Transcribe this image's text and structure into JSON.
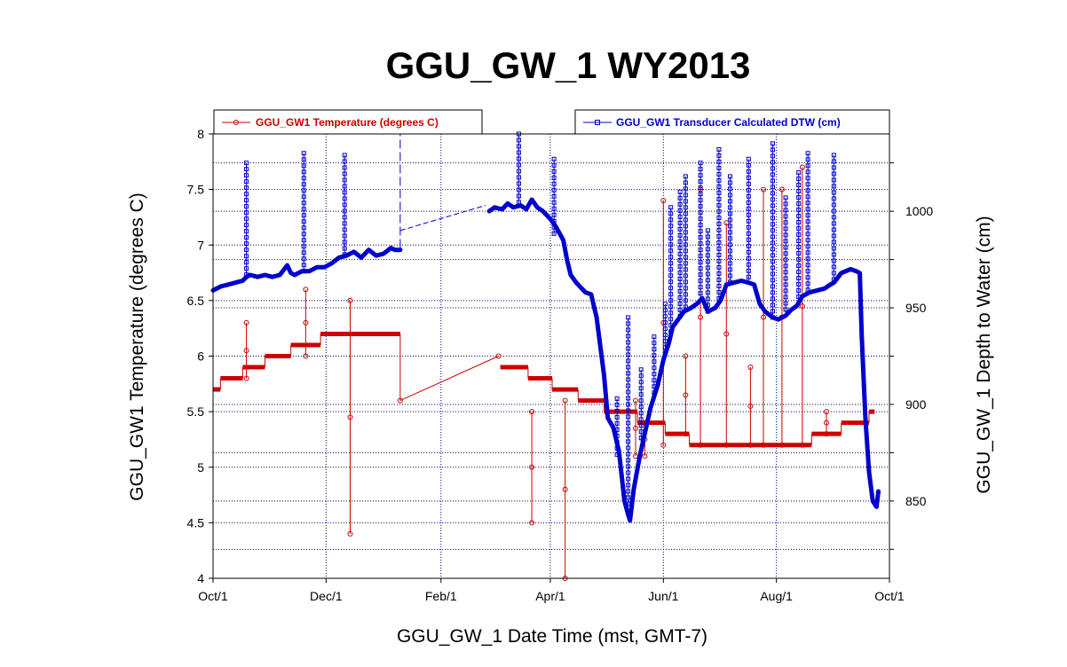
{
  "chart_data": {
    "type": "line",
    "title": "GGU_GW_1 WY2013",
    "xlabel": "GGU_GW_1 Date Time (mst, GMT-7)",
    "ylabel_left": "GGU_GW1 Temperature (degrees C)",
    "ylabel_right": "GGU_GW_1 Depth to Water (cm)",
    "x_ticks": [
      "Oct/1",
      "Dec/1",
      "Feb/1",
      "Apr/1",
      "Jun/1",
      "Aug/1",
      "Oct/1"
    ],
    "x_range_days": [
      0,
      365
    ],
    "y_left_ticks": [
      "4",
      "4.5",
      "5",
      "5.5",
      "6",
      "6.5",
      "7",
      "7.5",
      "8"
    ],
    "ylim_left": [
      4,
      8
    ],
    "y_right_ticks": [
      "850",
      "900",
      "950",
      "1000"
    ],
    "ylim_right": [
      810,
      1040
    ],
    "grid": true,
    "colors": {
      "temperature": "#cc0000",
      "dtw": "#0000cc",
      "grid": "#000080"
    },
    "series": [
      {
        "name": "GGU_GW1 Temperature (degrees C)",
        "axis": "left",
        "steps": [
          {
            "x0": 0,
            "x1": 4,
            "y": 5.7
          },
          {
            "x0": 4,
            "x1": 16,
            "y": 5.8
          },
          {
            "x0": 16,
            "x1": 28,
            "y": 5.9
          },
          {
            "x0": 28,
            "x1": 42,
            "y": 6.0
          },
          {
            "x0": 42,
            "x1": 58,
            "y": 6.1
          },
          {
            "x0": 58,
            "x1": 101,
            "y": 6.2
          },
          {
            "x0": 155,
            "x1": 170,
            "y": 5.9
          },
          {
            "x0": 170,
            "x1": 183,
            "y": 5.8
          },
          {
            "x0": 183,
            "x1": 197,
            "y": 5.7
          },
          {
            "x0": 197,
            "x1": 211,
            "y": 5.6
          },
          {
            "x0": 211,
            "x1": 229,
            "y": 5.5
          },
          {
            "x0": 229,
            "x1": 244,
            "y": 5.4
          },
          {
            "x0": 244,
            "x1": 257,
            "y": 5.3
          },
          {
            "x0": 257,
            "x1": 323,
            "y": 5.2
          },
          {
            "x0": 323,
            "x1": 339,
            "y": 5.3
          },
          {
            "x0": 339,
            "x1": 354,
            "y": 5.4
          },
          {
            "x0": 354,
            "x1": 357,
            "y": 5.5
          }
        ],
        "gap_line": [
          [
            101,
            5.6
          ],
          [
            154,
            6.0
          ]
        ],
        "spikes": [
          {
            "x": 18,
            "y": 5.8,
            "top": 6.3
          },
          {
            "x": 50,
            "y": 6.0,
            "top": 6.6
          },
          {
            "x": 74,
            "y": 4.4,
            "top": 6.5
          },
          {
            "x": 172,
            "y": 4.5,
            "top": 5.5
          },
          {
            "x": 190,
            "y": 4.0,
            "top": 5.6
          },
          {
            "x": 228,
            "y": 5.1,
            "top": 5.6
          },
          {
            "x": 233,
            "y": 5.1,
            "top": 5.4
          },
          {
            "x": 243,
            "y": 5.2,
            "top": 7.4
          },
          {
            "x": 255,
            "y": 5.3,
            "top": 6.0
          },
          {
            "x": 263,
            "y": 5.2,
            "top": 7.5
          },
          {
            "x": 277,
            "y": 5.2,
            "top": 7.2
          },
          {
            "x": 290,
            "y": 5.2,
            "top": 5.9
          },
          {
            "x": 297,
            "y": 5.2,
            "top": 7.5
          },
          {
            "x": 307,
            "y": 5.2,
            "top": 7.5
          },
          {
            "x": 318,
            "y": 5.2,
            "top": 7.7
          },
          {
            "x": 331,
            "y": 5.3,
            "top": 5.5
          }
        ]
      },
      {
        "name": "GGU_GW1 Transducer Calculated DTW (cm)",
        "axis": "right",
        "points": [
          [
            0,
            959
          ],
          [
            4,
            961
          ],
          [
            8,
            962
          ],
          [
            12,
            963
          ],
          [
            16,
            964
          ],
          [
            18,
            966
          ],
          [
            20,
            967
          ],
          [
            24,
            966
          ],
          [
            28,
            967
          ],
          [
            32,
            966
          ],
          [
            36,
            967
          ],
          [
            40,
            972
          ],
          [
            42,
            968
          ],
          [
            44,
            967
          ],
          [
            48,
            969
          ],
          [
            52,
            969
          ],
          [
            56,
            971
          ],
          [
            60,
            971
          ],
          [
            64,
            973
          ],
          [
            68,
            976
          ],
          [
            72,
            977
          ],
          [
            76,
            979
          ],
          [
            80,
            976
          ],
          [
            84,
            980
          ],
          [
            88,
            977
          ],
          [
            92,
            978
          ],
          [
            96,
            981
          ],
          [
            98,
            980
          ],
          [
            101,
            980
          ],
          [
            149,
            1000
          ],
          [
            152,
            1002
          ],
          [
            156,
            1001
          ],
          [
            159,
            1004
          ],
          [
            162,
            1002
          ],
          [
            166,
            1003
          ],
          [
            169,
            1001
          ],
          [
            172,
            1006
          ],
          [
            175,
            1002
          ],
          [
            178,
            1000
          ],
          [
            182,
            996
          ],
          [
            185,
            992
          ],
          [
            189,
            985
          ],
          [
            191,
            975
          ],
          [
            193,
            967
          ],
          [
            196,
            963
          ],
          [
            199,
            960
          ],
          [
            201,
            958
          ],
          [
            204,
            957
          ],
          [
            207,
            945
          ],
          [
            209,
            930
          ],
          [
            211,
            915
          ],
          [
            213,
            893
          ],
          [
            216,
            888
          ],
          [
            219,
            876
          ],
          [
            222,
            850
          ],
          [
            224,
            843
          ],
          [
            225,
            840
          ],
          [
            227,
            856
          ],
          [
            230,
            872
          ],
          [
            233,
            885
          ],
          [
            236,
            898
          ],
          [
            240,
            910
          ],
          [
            243,
            923
          ],
          [
            246,
            932
          ],
          [
            248,
            940
          ],
          [
            251,
            944
          ],
          [
            254,
            948
          ],
          [
            258,
            950
          ],
          [
            261,
            952
          ],
          [
            264,
            955
          ],
          [
            267,
            948
          ],
          [
            271,
            950
          ],
          [
            274,
            954
          ],
          [
            277,
            962
          ],
          [
            281,
            963
          ],
          [
            285,
            964
          ],
          [
            289,
            963
          ],
          [
            292,
            962
          ],
          [
            295,
            952
          ],
          [
            298,
            948
          ],
          [
            302,
            945
          ],
          [
            305,
            944
          ],
          [
            309,
            946
          ],
          [
            312,
            949
          ],
          [
            315,
            951
          ],
          [
            318,
            956
          ],
          [
            322,
            958
          ],
          [
            326,
            959
          ],
          [
            330,
            960
          ],
          [
            333,
            962
          ],
          [
            335,
            963
          ],
          [
            339,
            968
          ],
          [
            344,
            970
          ],
          [
            347,
            969
          ],
          [
            349,
            968
          ],
          [
            350,
            936
          ],
          [
            352,
            893
          ],
          [
            354,
            865
          ],
          [
            356,
            850
          ],
          [
            358,
            847
          ],
          [
            359,
            855
          ]
        ],
        "gap_line": [
          [
            101,
            990
          ],
          [
            147,
            1003
          ]
        ],
        "spikes": [
          {
            "x": 18,
            "y": 966,
            "top": 1025
          },
          {
            "x": 49,
            "y": 968,
            "top": 1030
          },
          {
            "x": 71,
            "y": 977,
            "top": 1029
          },
          {
            "x": 165,
            "y": 1002,
            "top": 1040
          },
          {
            "x": 184,
            "y": 988,
            "top": 1027
          },
          {
            "x": 218,
            "y": 874,
            "top": 903
          },
          {
            "x": 224,
            "y": 846,
            "top": 945
          },
          {
            "x": 231,
            "y": 880,
            "top": 918
          },
          {
            "x": 238,
            "y": 903,
            "top": 935
          },
          {
            "x": 244,
            "y": 925,
            "top": 952
          },
          {
            "x": 247,
            "y": 935,
            "top": 1002
          },
          {
            "x": 252,
            "y": 945,
            "top": 1010
          },
          {
            "x": 255,
            "y": 948,
            "top": 1018
          },
          {
            "x": 263,
            "y": 955,
            "top": 1025
          },
          {
            "x": 267,
            "y": 948,
            "top": 990
          },
          {
            "x": 273,
            "y": 952,
            "top": 1032
          },
          {
            "x": 279,
            "y": 963,
            "top": 1018
          },
          {
            "x": 289,
            "y": 963,
            "top": 1027
          },
          {
            "x": 302,
            "y": 945,
            "top": 1035
          },
          {
            "x": 309,
            "y": 947,
            "top": 1007
          },
          {
            "x": 316,
            "y": 954,
            "top": 1020
          },
          {
            "x": 321,
            "y": 958,
            "top": 1030
          },
          {
            "x": 335,
            "y": 963,
            "top": 1029
          }
        ]
      }
    ],
    "legend": [
      {
        "label": "GGU_GW1 Temperature (degrees C)",
        "position": "top-left"
      },
      {
        "label": "GGU_GW1 Transducer Calculated DTW (cm)",
        "position": "top-right"
      }
    ]
  }
}
